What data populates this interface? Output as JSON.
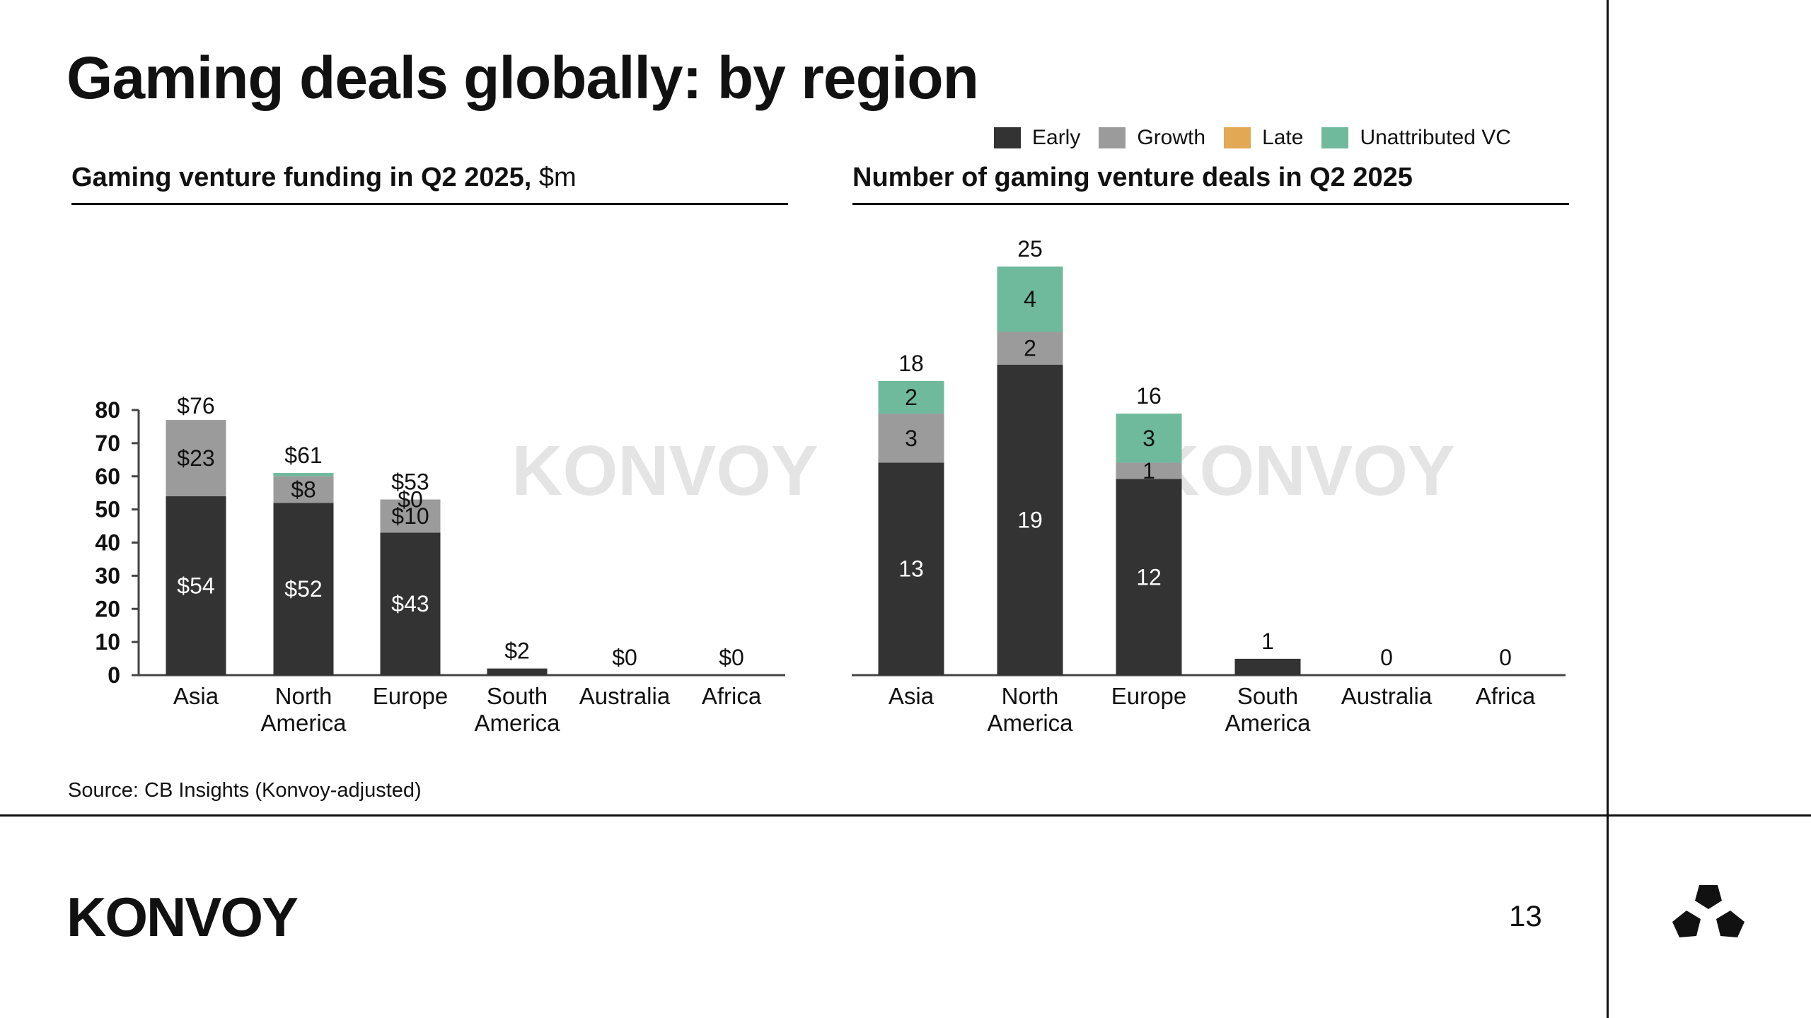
{
  "page": {
    "title": "Gaming deals globally: by region",
    "source": "Source: CB Insights (Konvoy-adjusted)",
    "logo": "KONVOY",
    "watermark": "KONVOY",
    "page_number": "13"
  },
  "legend": [
    {
      "label": "Early",
      "color": "#333333"
    },
    {
      "label": "Growth",
      "color": "#9b9b9b"
    },
    {
      "label": "Late",
      "color": "#e3a853"
    },
    {
      "label": "Unattributed VC",
      "color": "#6fb99d"
    }
  ],
  "chart_data": [
    {
      "type": "bar",
      "stacked": true,
      "title": "Gaming venture funding in Q2 2025,",
      "title_unit": "$m",
      "categories": [
        "Asia",
        "North America",
        "Europe",
        "South America",
        "Australia",
        "Africa"
      ],
      "category_lines": [
        [
          "Asia"
        ],
        [
          "North",
          "America"
        ],
        [
          "Europe"
        ],
        [
          "South",
          "America"
        ],
        [
          "Australia"
        ],
        [
          "Africa"
        ]
      ],
      "series": [
        {
          "name": "Early",
          "values": [
            54,
            52,
            43,
            2,
            0,
            0
          ]
        },
        {
          "name": "Growth",
          "values": [
            23,
            8,
            10,
            0,
            0,
            0
          ]
        },
        {
          "name": "Late",
          "values": [
            0,
            0,
            0,
            0,
            0,
            0
          ]
        },
        {
          "name": "Unattributed VC",
          "values": [
            0,
            1,
            0,
            0,
            0,
            0
          ]
        }
      ],
      "segment_labels": [
        [
          "$54",
          "$23",
          null,
          null
        ],
        [
          "$52",
          "$8",
          null,
          null
        ],
        [
          "$43",
          "$10",
          null,
          "$0"
        ],
        [
          null,
          null,
          null,
          null
        ],
        [
          null,
          null,
          null,
          null
        ],
        [
          null,
          null,
          null,
          null
        ]
      ],
      "totals": [
        76,
        61,
        53,
        2,
        0,
        0
      ],
      "total_labels": [
        "$76",
        "$61",
        "$53",
        "$2",
        "$0",
        "$0"
      ],
      "ylim": [
        0,
        80
      ],
      "yticks": [
        0,
        10,
        20,
        30,
        40,
        50,
        60,
        70,
        80
      ],
      "show_yaxis": true,
      "xlabel": "",
      "ylabel": ""
    },
    {
      "type": "bar",
      "stacked": true,
      "title": "Number of gaming venture deals in Q2 2025",
      "title_unit": "",
      "categories": [
        "Asia",
        "North America",
        "Europe",
        "South America",
        "Australia",
        "Africa"
      ],
      "category_lines": [
        [
          "Asia"
        ],
        [
          "North",
          "America"
        ],
        [
          "Europe"
        ],
        [
          "South",
          "America"
        ],
        [
          "Australia"
        ],
        [
          "Africa"
        ]
      ],
      "series": [
        {
          "name": "Early",
          "values": [
            13,
            19,
            12,
            1,
            0,
            0
          ]
        },
        {
          "name": "Growth",
          "values": [
            3,
            2,
            1,
            0,
            0,
            0
          ]
        },
        {
          "name": "Late",
          "values": [
            0,
            0,
            0,
            0,
            0,
            0
          ]
        },
        {
          "name": "Unattributed VC",
          "values": [
            2,
            4,
            3,
            0,
            0,
            0
          ]
        }
      ],
      "segment_labels": [
        [
          "13",
          "3",
          null,
          "2"
        ],
        [
          "19",
          "2",
          null,
          "4"
        ],
        [
          "12",
          "1",
          null,
          "3"
        ],
        [
          null,
          null,
          null,
          null
        ],
        [
          null,
          null,
          null,
          null
        ],
        [
          null,
          null,
          null,
          null
        ]
      ],
      "totals": [
        18,
        25,
        16,
        1,
        0,
        0
      ],
      "total_labels": [
        "18",
        "25",
        "16",
        "1",
        "0",
        "0"
      ],
      "ylim": [
        0,
        25
      ],
      "yticks": [],
      "show_yaxis": false,
      "xlabel": "",
      "ylabel": ""
    }
  ]
}
